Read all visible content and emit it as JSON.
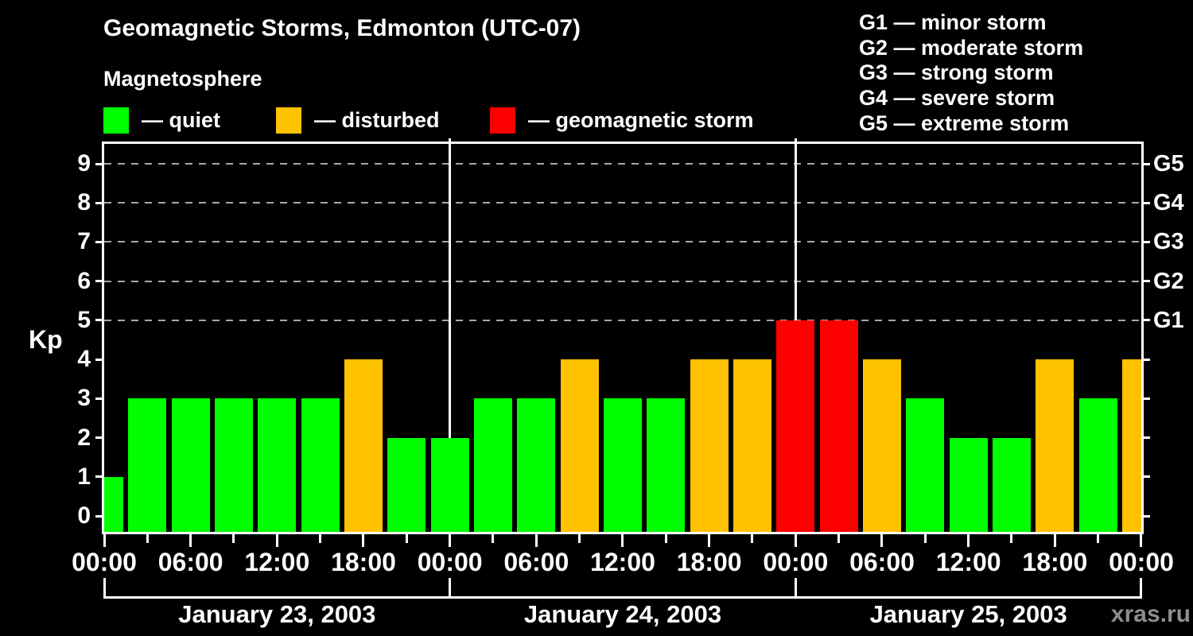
{
  "watermark": "xras.ru",
  "header": {
    "title": "Geomagnetic Storms, Edmonton (UTC-07)",
    "subtitle": "Magnetosphere",
    "legend": [
      {
        "key": "quiet",
        "label": "— quiet"
      },
      {
        "key": "disturbed",
        "label": "— disturbed"
      },
      {
        "key": "storm",
        "label": "— geomagnetic storm"
      }
    ],
    "g_scale_legend": [
      "G1 — minor storm",
      "G2 — moderate storm",
      "G3 — strong storm",
      "G4 — severe storm",
      "G5 — extreme storm"
    ]
  },
  "chart_data": {
    "type": "bar",
    "title": "Geomagnetic Storms, Edmonton (UTC-07)",
    "subtitle": "Magnetosphere",
    "ylabel": "Kp",
    "ylim": [
      0,
      9.5
    ],
    "yticks": [
      "0",
      "1",
      "2",
      "3",
      "4",
      "5",
      "6",
      "7",
      "8",
      "9"
    ],
    "gridlines_at_kp": [
      5,
      6,
      7,
      8,
      9
    ],
    "grid": "dashed horizontal at storm levels only",
    "right_axis": [
      {
        "kp": 5,
        "label": "G1"
      },
      {
        "kp": 6,
        "label": "G2"
      },
      {
        "kp": 7,
        "label": "G3"
      },
      {
        "kp": 8,
        "label": "G4"
      },
      {
        "kp": 9,
        "label": "G5"
      }
    ],
    "x_axis": {
      "unit": "hours",
      "range": [
        0,
        72
      ],
      "major_tick_every": 6,
      "minor_tick_every": 3,
      "tick_labels": [
        "00:00",
        "06:00",
        "12:00",
        "18:00",
        "00:00",
        "06:00",
        "12:00",
        "18:00",
        "00:00",
        "06:00",
        "12:00",
        "18:00",
        "00:00"
      ]
    },
    "days": [
      {
        "label": "January 23, 2003",
        "start_hour": 0,
        "end_hour": 24
      },
      {
        "label": "January 24, 2003",
        "start_hour": 24,
        "end_hour": 48
      },
      {
        "label": "January 25, 2003",
        "start_hour": 48,
        "end_hour": 72
      }
    ],
    "day_boundary_hours": [
      24,
      48
    ],
    "colors": {
      "quiet": "#00ff00",
      "disturbed": "#ffc200",
      "storm": "#ff0000",
      "axis": "#ffffff",
      "grid": "#a8a8a8",
      "background": "#000000",
      "watermark": "#8e8e8e"
    },
    "bars": [
      {
        "center_hour": 0,
        "kp": 1,
        "status": "quiet"
      },
      {
        "center_hour": 3,
        "kp": 3,
        "status": "quiet"
      },
      {
        "center_hour": 6,
        "kp": 3,
        "status": "quiet"
      },
      {
        "center_hour": 9,
        "kp": 3,
        "status": "quiet"
      },
      {
        "center_hour": 12,
        "kp": 3,
        "status": "quiet"
      },
      {
        "center_hour": 15,
        "kp": 3,
        "status": "quiet"
      },
      {
        "center_hour": 18,
        "kp": 4,
        "status": "disturbed"
      },
      {
        "center_hour": 21,
        "kp": 2,
        "status": "quiet"
      },
      {
        "center_hour": 24,
        "kp": 2,
        "status": "quiet"
      },
      {
        "center_hour": 27,
        "kp": 3,
        "status": "quiet"
      },
      {
        "center_hour": 30,
        "kp": 3,
        "status": "quiet"
      },
      {
        "center_hour": 33,
        "kp": 4,
        "status": "disturbed"
      },
      {
        "center_hour": 36,
        "kp": 3,
        "status": "quiet"
      },
      {
        "center_hour": 39,
        "kp": 3,
        "status": "quiet"
      },
      {
        "center_hour": 42,
        "kp": 4,
        "status": "disturbed"
      },
      {
        "center_hour": 45,
        "kp": 4,
        "status": "disturbed"
      },
      {
        "center_hour": 48,
        "kp": 5,
        "status": "storm"
      },
      {
        "center_hour": 51,
        "kp": 5,
        "status": "storm"
      },
      {
        "center_hour": 54,
        "kp": 4,
        "status": "disturbed"
      },
      {
        "center_hour": 57,
        "kp": 3,
        "status": "quiet"
      },
      {
        "center_hour": 60,
        "kp": 2,
        "status": "quiet"
      },
      {
        "center_hour": 63,
        "kp": 2,
        "status": "quiet"
      },
      {
        "center_hour": 66,
        "kp": 4,
        "status": "disturbed"
      },
      {
        "center_hour": 69,
        "kp": 3,
        "status": "quiet"
      },
      {
        "center_hour": 72,
        "kp": 4,
        "status": "disturbed"
      }
    ]
  }
}
